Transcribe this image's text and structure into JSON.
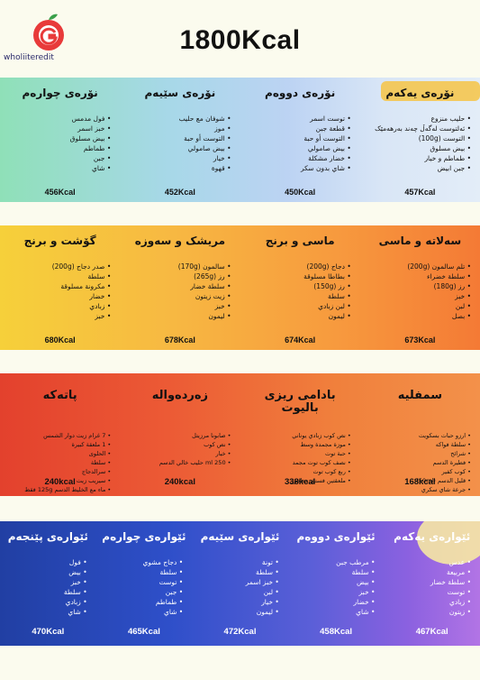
{
  "header": {
    "title": "1800Kcal",
    "logo_text": "wholiiteredit"
  },
  "sections": [
    {
      "meals": [
        {
          "title": "نۆرەی یەکەم",
          "items": [
            "حلیب منزوع",
            "ئەلتوست لەگەڵ چەند بەرهەمێک",
            "التوست (100g)",
            "بیض مسلوق",
            "طماطم و خیار",
            "جبن ابیض"
          ],
          "kcal": "457Kcal"
        },
        {
          "title": "نۆرەی دووەم",
          "items": [
            "توست اسمر",
            "قطعة جبن",
            "التوست أو حبة",
            "بيض صامولي",
            "خضار مشكلة",
            "شاي بدون سكر"
          ],
          "kcal": "450Kcal"
        },
        {
          "title": "نۆرەی سێیەم",
          "items": [
            "شوفان مع حليب",
            "موز",
            "التوست أو حبة",
            "بيض صامولي",
            "خيار",
            "قهوة"
          ],
          "kcal": "452Kcal"
        },
        {
          "title": "نۆرەی چوارەم",
          "items": [
            "فول مدمس",
            "خبز اسمر",
            "بيض مسلوق",
            "طماطم",
            "جبن",
            "شاي"
          ],
          "kcal": "456Kcal"
        }
      ]
    },
    {
      "meals": [
        {
          "title": "سەلاتە و ماسی",
          "items": [
            "تلم سالمون (200g)",
            "سلطة خضراء",
            "رز (180g)",
            "خبز",
            "لبن",
            "بصل"
          ],
          "kcal": "673Kcal"
        },
        {
          "title": "ماسی و برنج",
          "items": [
            "دجاج (200g)",
            "بطاطا مسلوقة",
            "رز (150g)",
            "سلطة",
            "لبن زبادي",
            "ليمون"
          ],
          "kcal": "674Kcal"
        },
        {
          "title": "مریشک و سەوزە",
          "items": [
            "سالمون (170g)",
            "رز (265g)",
            "سلطة خضار",
            "زيت زيتون",
            "خبز",
            "ليمون"
          ],
          "kcal": "678Kcal"
        },
        {
          "title": "گۆشت و برنج",
          "items": [
            "صدر دجاج (200g)",
            "سلطة",
            "مكرونة مسلوقة",
            "خضار",
            "زبادي",
            "خبز"
          ],
          "kcal": "680Kcal"
        }
      ]
    },
    {
      "meals": [
        {
          "title": "سمفلیە",
          "items": [
            "ارزو حبات بسكويت",
            "سلطة فواكه",
            "شرائح",
            "فطيرة الدسم",
            "كوب كفير",
            "قليل الدسم (50ml)",
            "جرعة شاي سكري"
          ],
          "kcal": "168kcal"
        },
        {
          "title": "بادامی ریزی بالیوت",
          "items": [
            "نص كوب زبادي يوناني",
            "موزة مجمدة وسط",
            "حبة توت",
            "نصف كوب توت مجمد",
            "ربع كوب توت",
            "ملعقتين فستق مطحون"
          ],
          "kcal": "338kcal"
        },
        {
          "title": "زەردەواڵە",
          "items": [
            "صابونا مرزيتل",
            "نص كوب",
            "خيار",
            "250 ml حليب خالي الدسم"
          ],
          "kcal": "240kcal"
        },
        {
          "title": "پاتەکە",
          "items": [
            "7 غرام زيت دوار الشمس",
            "1 ملعقة كبيرة",
            "الحلوى",
            "سلطة",
            "سرالدجاج",
            "سيريب زيت",
            "ماء مع الخليط الدسم 125g فقط"
          ],
          "kcal": "240kcal"
        }
      ]
    },
    {
      "meals": [
        {
          "title": "ئێوارەی یەکەم",
          "items": [
            "عدس",
            "مربيعة",
            "سلطة خضار",
            "توست",
            "زبادي",
            "زيتون"
          ],
          "kcal": "467Kcal"
        },
        {
          "title": "ئێوارەی دووەم",
          "items": [
            "مرطب جبن",
            "سلطة",
            "بيض",
            "خبز",
            "خضار",
            "شاي"
          ],
          "kcal": "458Kcal"
        },
        {
          "title": "ئێوارەی سێیەم",
          "items": [
            "تونة",
            "سلطة",
            "خبز اسمر",
            "لبن",
            "خيار",
            "ليمون"
          ],
          "kcal": "472Kcal"
        },
        {
          "title": "ئێوارەی چوارەم",
          "items": [
            "دجاج مشوي",
            "سلطة",
            "توست",
            "جبن",
            "طماطم",
            "شاي"
          ],
          "kcal": "465Kcal"
        },
        {
          "title": "ئێوارەی پێنجەم",
          "items": [
            "فول",
            "بيض",
            "خبز",
            "سلطة",
            "زبادي",
            "شاي"
          ],
          "kcal": "470Kcal"
        }
      ]
    }
  ]
}
